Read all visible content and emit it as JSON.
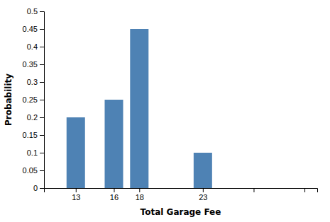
{
  "chart_data": {
    "type": "bar",
    "x": [
      13,
      16,
      18,
      23
    ],
    "values": [
      0.2,
      0.25,
      0.45,
      0.1
    ],
    "color": "#4E82B4",
    "xlabel": "Total Garage Fee",
    "ylabel": "Probability",
    "xlim": [
      10.5,
      32
    ],
    "xticks": [
      13,
      16,
      18,
      23,
      {
        "value": 27,
        "label": null
      },
      {
        "value": 31,
        "label": null
      }
    ],
    "ylim": [
      0,
      0.5
    ],
    "yticks": [
      0,
      0.05,
      0.1,
      0.15,
      0.2,
      0.25,
      0.3,
      0.35,
      0.4,
      0.45,
      0.5
    ]
  }
}
